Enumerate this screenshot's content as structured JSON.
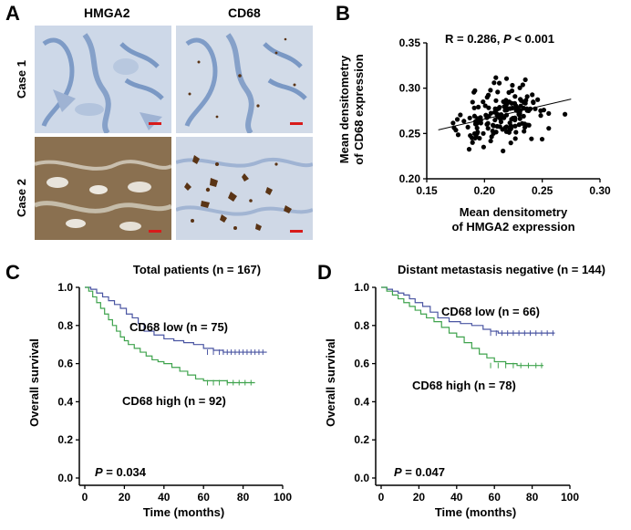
{
  "panels": {
    "A": {
      "letter": "A",
      "col_headers": [
        "HMGA2",
        "CD68"
      ],
      "row_labels": [
        "Case 1",
        "Case 2"
      ],
      "colors": {
        "case1_bg": "#c7d4e6",
        "case1_stain": "#7f9cc7",
        "case2_hmga2_bg": "#8d7352",
        "case2_cd68_bg": "#cdd6e4",
        "brown": "#5a3415",
        "scale_bar": "#d81b1b"
      }
    },
    "B": {
      "letter": "B"
    },
    "C": {
      "letter": "C"
    },
    "D": {
      "letter": "D"
    }
  },
  "chart_data": [
    {
      "id": "B",
      "type": "scatter",
      "annotation_r": "R = 0.286, ",
      "annotation_p_symbol": "P",
      "annotation_p_value": " < 0.001",
      "xlabel": [
        "Mean densitometry",
        "of HMGA2 expression"
      ],
      "ylabel": [
        "Mean densitometry",
        "of CD68 expression"
      ],
      "xlim": [
        0.15,
        0.3
      ],
      "ylim": [
        0.2,
        0.35
      ],
      "xticks": [
        "0.15",
        "0.20",
        "0.25",
        "0.30"
      ],
      "yticks": [
        "0.20",
        "0.25",
        "0.30",
        "0.35"
      ],
      "regression": {
        "x": [
          0.16,
          0.275
        ],
        "y": [
          0.254,
          0.288
        ]
      },
      "point_count": 167
    },
    {
      "id": "C",
      "type": "line",
      "title": "Total patients (n = 167)",
      "xlabel": "Time (months)",
      "ylabel": "Overall survival",
      "xlim": [
        0,
        100
      ],
      "ylim": [
        0,
        1.0
      ],
      "xticks": [
        "0",
        "20",
        "40",
        "60",
        "80",
        "100"
      ],
      "yticks": [
        "0.0",
        "0.2",
        "0.4",
        "0.6",
        "0.8",
        "1.0"
      ],
      "p_symbol": "P",
      "p_value": " = 0.034",
      "series": [
        {
          "name": "CD68 low (n = 75)",
          "color": "#4a55a2",
          "x": [
            0,
            3,
            6,
            9,
            12,
            15,
            18,
            21,
            24,
            27,
            30,
            35,
            40,
            45,
            50,
            55,
            60,
            65,
            70,
            92
          ],
          "y": [
            1.0,
            0.99,
            0.97,
            0.95,
            0.93,
            0.91,
            0.89,
            0.86,
            0.84,
            0.81,
            0.77,
            0.75,
            0.73,
            0.72,
            0.71,
            0.7,
            0.68,
            0.67,
            0.66,
            0.66
          ],
          "censor_x": [
            62,
            65,
            68,
            70,
            72,
            74,
            76,
            78,
            80,
            82,
            84,
            86,
            88,
            90
          ]
        },
        {
          "name": "CD68 high (n = 92)",
          "color": "#3fa34d",
          "x": [
            0,
            2,
            4,
            6,
            8,
            10,
            12,
            14,
            16,
            18,
            20,
            22,
            25,
            28,
            31,
            34,
            37,
            40,
            44,
            48,
            52,
            56,
            60,
            66,
            72,
            86
          ],
          "y": [
            1.0,
            0.98,
            0.95,
            0.92,
            0.89,
            0.86,
            0.83,
            0.8,
            0.77,
            0.74,
            0.72,
            0.7,
            0.68,
            0.66,
            0.64,
            0.62,
            0.61,
            0.6,
            0.58,
            0.56,
            0.54,
            0.52,
            0.51,
            0.51,
            0.5,
            0.5
          ],
          "censor_x": [
            62,
            65,
            68,
            72,
            75,
            78,
            81,
            84
          ]
        }
      ]
    },
    {
      "id": "D",
      "type": "line",
      "title": "Distant metastasis negative (n = 144)",
      "xlabel": "Time (months)",
      "ylabel": "Overall survival",
      "xlim": [
        0,
        100
      ],
      "ylim": [
        0,
        1.0
      ],
      "xticks": [
        "0",
        "20",
        "40",
        "60",
        "80",
        "100"
      ],
      "yticks": [
        "0.0",
        "0.2",
        "0.4",
        "0.6",
        "0.8",
        "1.0"
      ],
      "p_symbol": "P",
      "p_value": " = 0.047",
      "series": [
        {
          "name": "CD68 low (n = 66)",
          "color": "#4a55a2",
          "x": [
            0,
            3,
            6,
            9,
            12,
            15,
            18,
            22,
            26,
            30,
            36,
            42,
            48,
            54,
            58,
            62,
            92
          ],
          "y": [
            1.0,
            0.99,
            0.98,
            0.97,
            0.96,
            0.94,
            0.92,
            0.9,
            0.87,
            0.84,
            0.82,
            0.81,
            0.8,
            0.78,
            0.77,
            0.76,
            0.76
          ],
          "censor_x": [
            58,
            61,
            64,
            67,
            70,
            73,
            76,
            79,
            82,
            85,
            88,
            91
          ]
        },
        {
          "name": "CD68 high (n = 78)",
          "color": "#3fa34d",
          "x": [
            0,
            3,
            6,
            9,
            12,
            15,
            18,
            21,
            24,
            28,
            32,
            36,
            40,
            44,
            48,
            52,
            56,
            60,
            66,
            72,
            86
          ],
          "y": [
            1.0,
            0.98,
            0.96,
            0.94,
            0.92,
            0.9,
            0.88,
            0.86,
            0.84,
            0.82,
            0.79,
            0.76,
            0.74,
            0.71,
            0.68,
            0.65,
            0.63,
            0.61,
            0.6,
            0.59,
            0.59
          ],
          "censor_x": [
            58,
            62,
            66,
            70,
            74,
            78,
            82,
            85
          ]
        }
      ]
    }
  ]
}
